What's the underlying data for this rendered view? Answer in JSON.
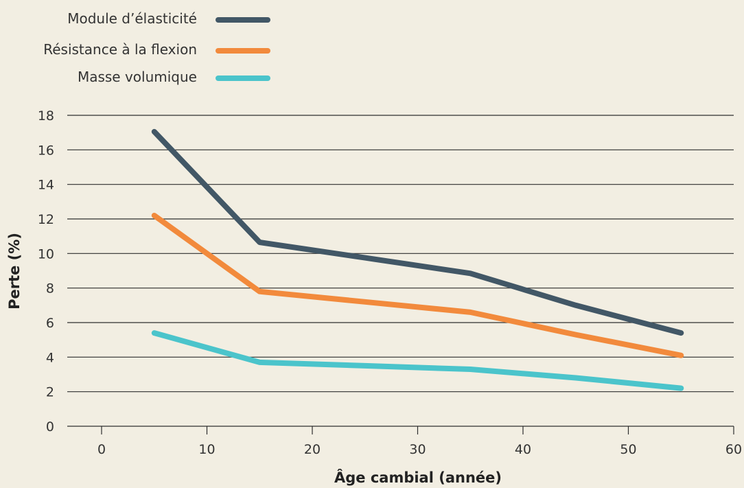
{
  "chart_data": {
    "type": "line",
    "title": "",
    "xlabel": "Âge cambial (année)",
    "ylabel": "Perte (%)",
    "xlim": [
      -3,
      60
    ],
    "ylim": [
      0,
      18
    ],
    "xticks": [
      0,
      10,
      20,
      30,
      40,
      50,
      60
    ],
    "yticks": [
      0,
      2,
      4,
      6,
      8,
      10,
      12,
      14,
      16,
      18
    ],
    "grid": "horizontal",
    "legend": "top-left",
    "series": [
      {
        "name": "Module d’élasticité",
        "color": "#425766",
        "x": [
          5,
          15,
          25,
          35,
          45,
          55
        ],
        "y": [
          17.05,
          10.65,
          9.75,
          8.85,
          7.0,
          5.4
        ]
      },
      {
        "name": "Résistance à la flexion",
        "color": "#f28a3c",
        "x": [
          5,
          15,
          25,
          35,
          45,
          55
        ],
        "y": [
          12.2,
          7.8,
          7.2,
          6.6,
          5.3,
          4.1
        ]
      },
      {
        "name": "Masse volumique",
        "color": "#4bc4cb",
        "x": [
          5,
          15,
          25,
          35,
          45,
          55
        ],
        "y": [
          5.4,
          3.7,
          3.5,
          3.3,
          2.8,
          2.2
        ]
      }
    ]
  }
}
